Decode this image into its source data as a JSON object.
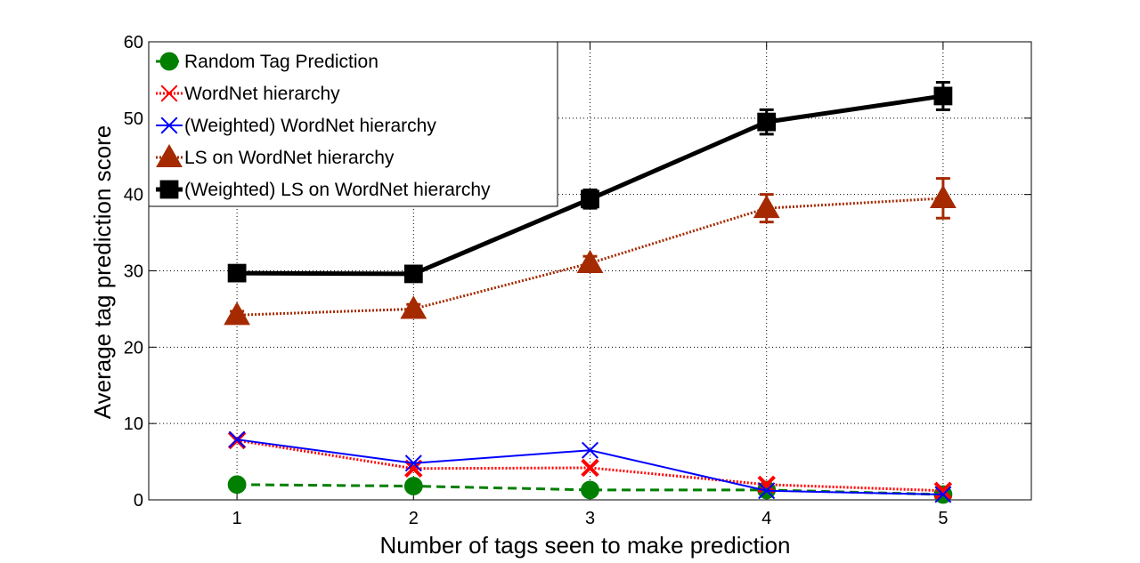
{
  "chart_data": {
    "type": "line",
    "title": "",
    "xlabel": "Number of tags seen to make prediction",
    "ylabel": "Average tag prediction score",
    "xlim": [
      0.5,
      5.5
    ],
    "ylim": [
      0,
      60
    ],
    "x_ticks": [
      1,
      2,
      3,
      4,
      5
    ],
    "y_ticks": [
      0,
      10,
      20,
      30,
      40,
      50,
      60
    ],
    "grid": true,
    "legend_position": "top-left",
    "x": [
      1,
      2,
      3,
      4,
      5
    ],
    "series": [
      {
        "name": "Random Tag Prediction",
        "values": [
          2.0,
          1.8,
          1.3,
          1.3,
          0.7
        ],
        "errors": [
          0,
          0,
          0,
          0,
          0
        ],
        "color": "#007f00",
        "line_style": "dashed",
        "marker": "circle"
      },
      {
        "name": "WordNet hierarchy",
        "values": [
          7.8,
          4.1,
          4.2,
          2.0,
          1.2
        ],
        "errors": [
          0,
          0,
          0,
          0,
          0
        ],
        "color": "#ff0000",
        "line_style": "dotted",
        "marker": "x"
      },
      {
        "name": "(Weighted) WordNet hierarchy",
        "values": [
          7.9,
          4.8,
          6.5,
          1.2,
          0.7
        ],
        "errors": [
          0,
          0,
          0,
          0,
          0
        ],
        "color": "#0000ff",
        "line_style": "solid",
        "marker": "x"
      },
      {
        "name": "LS on WordNet hierarchy",
        "values": [
          24.2,
          25.0,
          31.0,
          38.2,
          39.5
        ],
        "errors": [
          0.5,
          0.6,
          0.9,
          1.8,
          2.6
        ],
        "color": "#a52a00",
        "line_style": "dotted",
        "marker": "triangle"
      },
      {
        "name": "(Weighted) LS on WordNet hierarchy",
        "values": [
          29.7,
          29.6,
          39.4,
          49.5,
          52.9
        ],
        "errors": [
          0.3,
          0.3,
          1.2,
          1.6,
          1.8
        ],
        "color": "#000000",
        "line_style": "solid",
        "marker": "square"
      }
    ]
  }
}
